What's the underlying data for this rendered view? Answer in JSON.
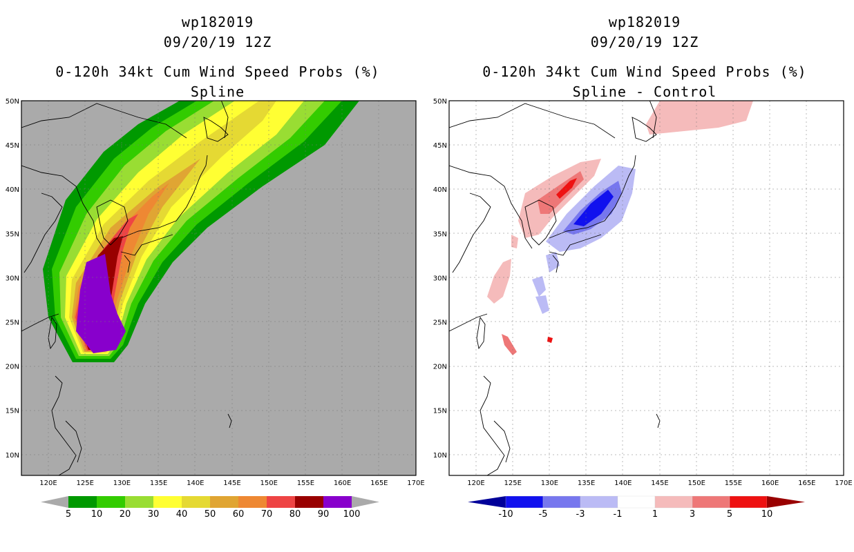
{
  "left": {
    "storm_id": "wp182019",
    "datetime": "09/20/19 12Z",
    "product": "0-120h 34kt Cum Wind Speed Probs (%)",
    "subtitle": "Spline",
    "colorbar_labels": [
      "5",
      "10",
      "20",
      "30",
      "40",
      "50",
      "60",
      "70",
      "80",
      "90",
      "100"
    ],
    "colorbar_colors": [
      "#009900",
      "#33cc00",
      "#99dd33",
      "#ffff33",
      "#e5d933",
      "#e0a533",
      "#ee8833",
      "#ee4444",
      "#990000",
      "#8800cc"
    ],
    "fill_background": "#aaaaaa"
  },
  "right": {
    "storm_id": "wp182019",
    "datetime": "09/20/19 12Z",
    "product": "0-120h 34kt Cum Wind Speed Probs (%)",
    "subtitle": "Spline - Control",
    "colorbar_labels": [
      "-10",
      "-5",
      "-3",
      "-1",
      "1",
      "3",
      "5",
      "10"
    ],
    "colorbar_colors": [
      "#000099",
      "#1111ee",
      "#7777ee",
      "#bbbbf5",
      "#ffffff",
      "#f5bbbb",
      "#ee7777",
      "#ee1111",
      "#990000"
    ]
  },
  "lon_labels": [
    "120E",
    "125E",
    "130E",
    "135E",
    "140E",
    "145E",
    "150E",
    "155E",
    "160E",
    "165E",
    "170E"
  ],
  "lat_labels": [
    "50N",
    "45N",
    "40N",
    "35N",
    "30N",
    "25N",
    "20N",
    "15N",
    "10N"
  ]
}
